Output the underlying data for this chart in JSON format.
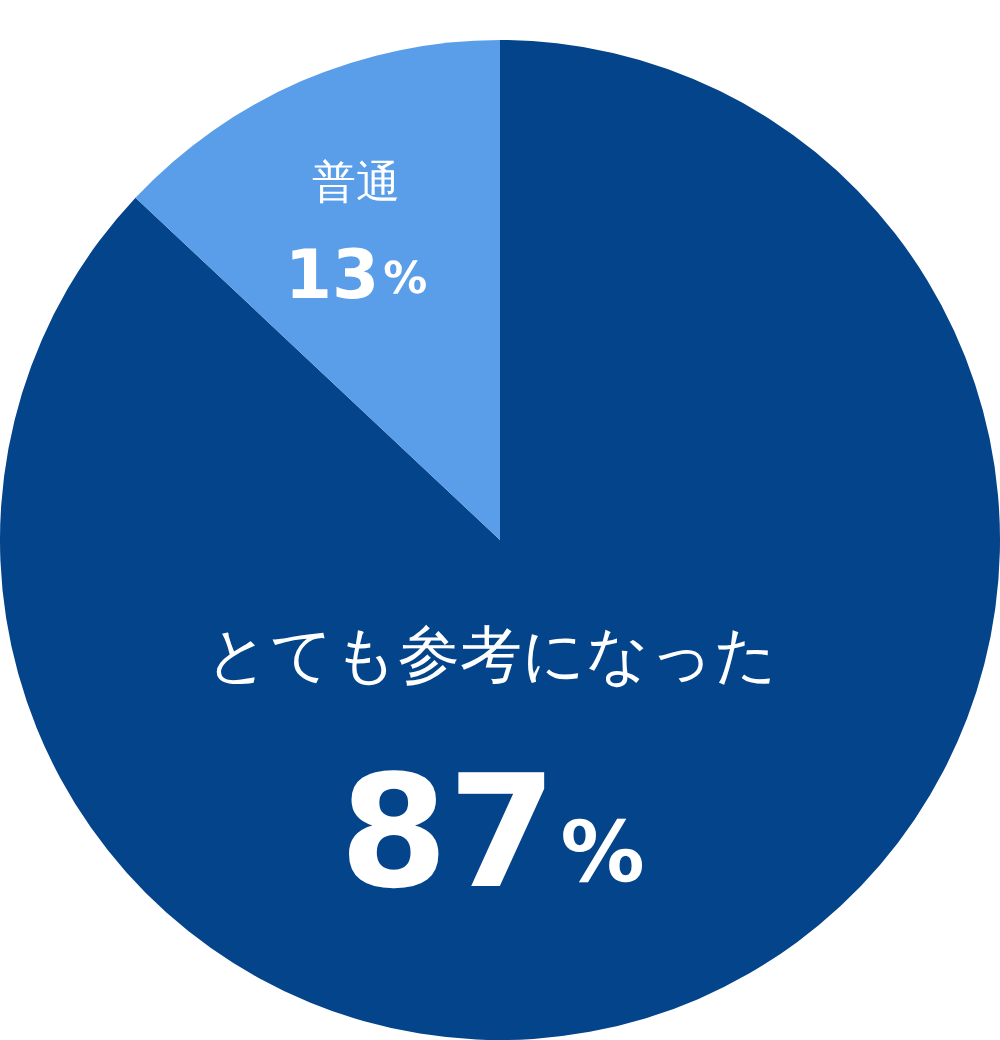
{
  "chart_data": {
    "type": "pie",
    "categories": [
      "とても参考になった",
      "普通"
    ],
    "values": [
      87,
      13
    ],
    "colors": [
      "#03448a",
      "#5a9de9"
    ],
    "value_labels": [
      "87%",
      "13%"
    ]
  }
}
